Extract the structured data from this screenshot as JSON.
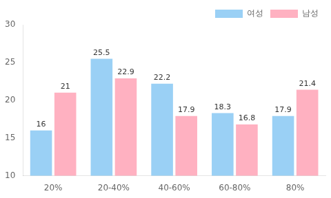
{
  "chart_data": {
    "type": "bar",
    "categories": [
      "20%",
      "20-40%",
      "40-60%",
      "60-80%",
      "80%"
    ],
    "series": [
      {
        "name": "여성",
        "values": [
          16,
          25.5,
          22.2,
          18.3,
          17.9
        ]
      },
      {
        "name": "남성",
        "values": [
          21,
          22.9,
          17.9,
          16.8,
          21.4
        ]
      }
    ],
    "ylim": [
      10,
      30
    ],
    "yticks": [
      10,
      15,
      20,
      25,
      30
    ],
    "grid": false,
    "legend": "upper right",
    "data_labels": true
  }
}
